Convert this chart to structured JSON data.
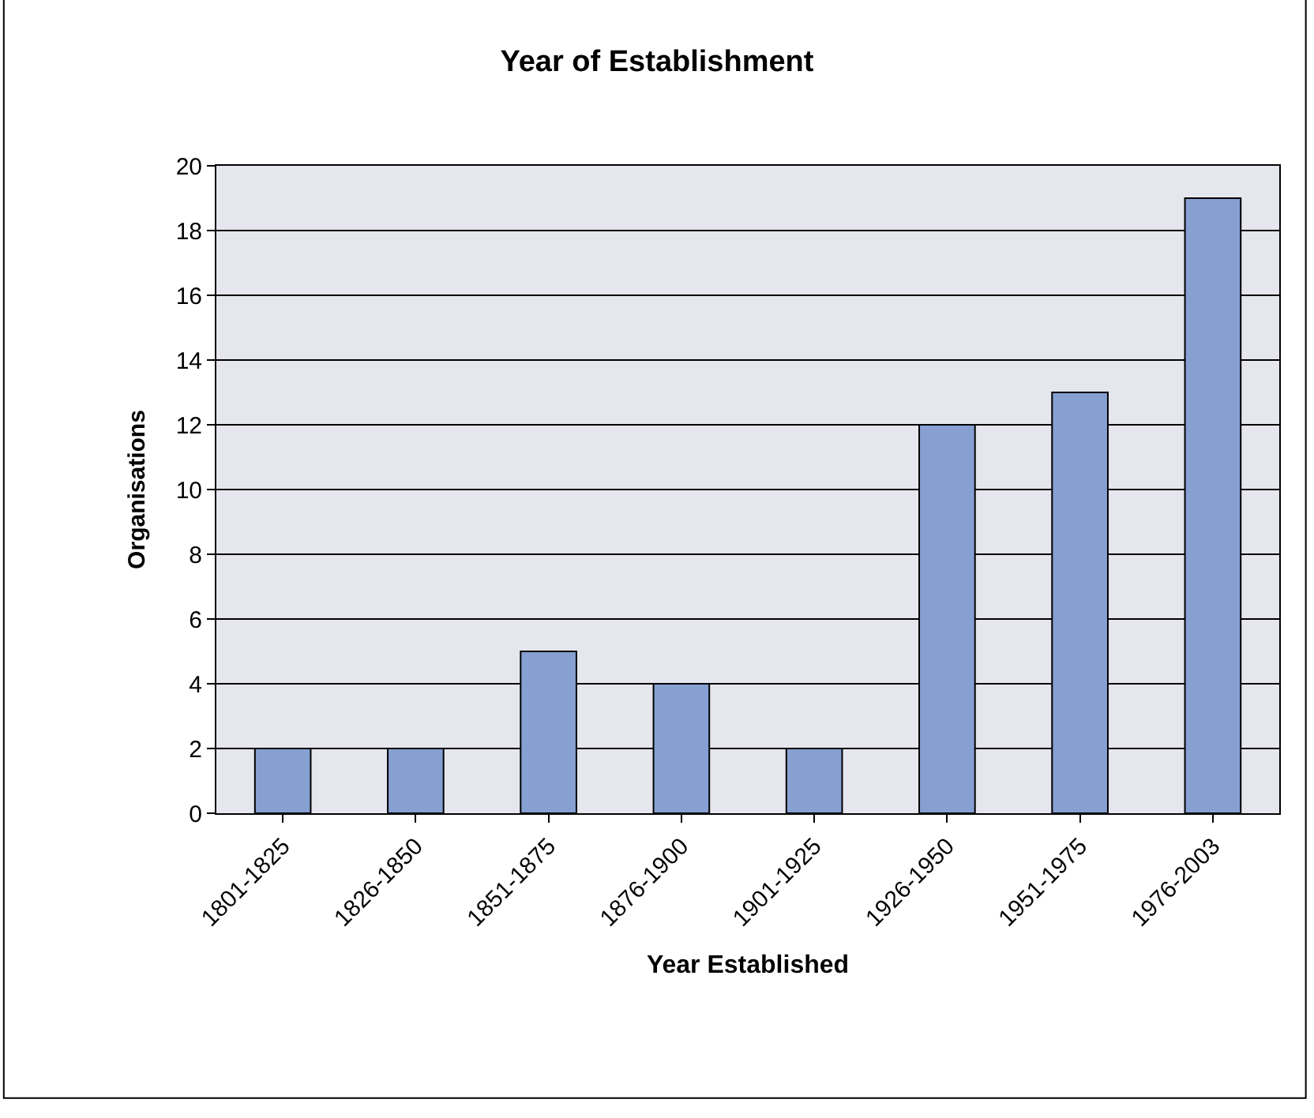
{
  "chart_data": {
    "type": "bar",
    "title": "Year of Establishment",
    "xlabel": "Year Established",
    "ylabel": "Organisations",
    "categories": [
      "1801-1825",
      "1826-1850",
      "1851-1875",
      "1876-1900",
      "1901-1925",
      "1926-1950",
      "1951-1975",
      "1976-2003"
    ],
    "values": [
      2,
      2,
      5,
      4,
      2,
      12,
      13,
      19
    ],
    "color": "#86a0d2",
    "ylim": [
      0,
      20
    ],
    "yticks": [
      0,
      2,
      4,
      6,
      8,
      10,
      12,
      14,
      16,
      18,
      20
    ],
    "grid": "y"
  }
}
